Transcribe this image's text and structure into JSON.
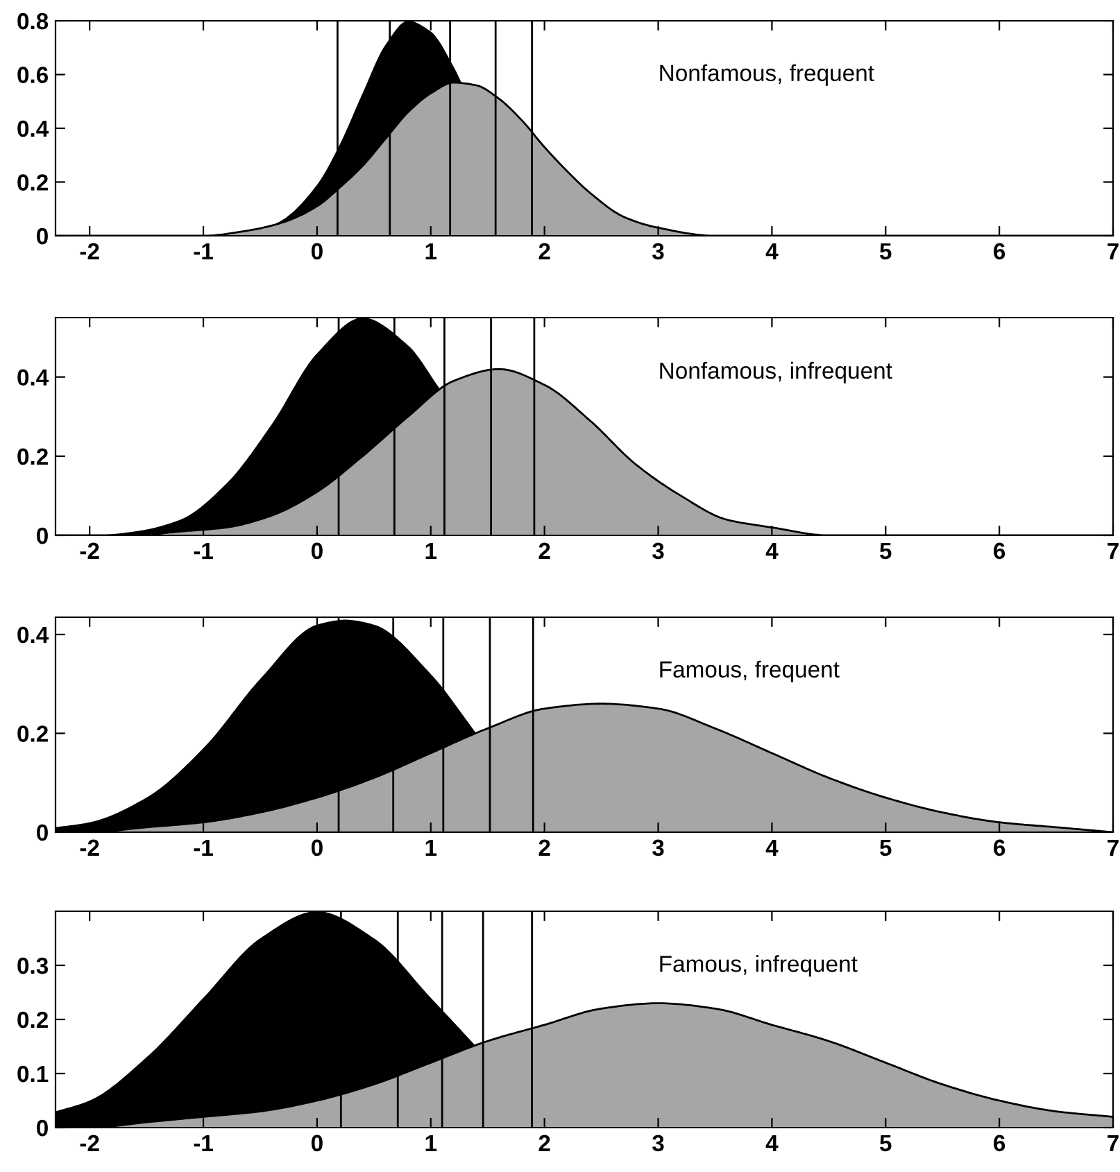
{
  "chart_data": [
    {
      "type": "area",
      "annotations": [
        "Nonfamous, frequent"
      ],
      "x": [
        -2.3,
        -1.5,
        -1,
        -0.6,
        -0.3,
        0,
        0.2,
        0.4,
        0.6,
        0.8,
        1.0,
        1.2,
        1.4,
        1.6,
        1.8,
        2.0,
        2.2,
        2.4,
        2.7,
        3.0,
        3.5,
        4,
        5,
        7
      ],
      "series": [
        {
          "color": "#000000",
          "x": [
            -0.5,
            -0.3,
            0,
            0.2,
            0.4,
            0.6,
            0.8,
            1.0,
            1.2,
            1.27
          ],
          "values": [
            0.02,
            0.06,
            0.19,
            0.34,
            0.53,
            0.71,
            0.8,
            0.76,
            0.63,
            0.57
          ]
        },
        {
          "color": "#a6a6a6",
          "values": [
            0,
            0,
            0,
            0.02,
            0.05,
            0.11,
            0.18,
            0.26,
            0.36,
            0.46,
            0.53,
            0.57,
            0.56,
            0.51,
            0.43,
            0.33,
            0.24,
            0.16,
            0.07,
            0.03,
            0,
            0,
            0,
            0
          ]
        }
      ],
      "xlim": [
        -2.3,
        7
      ],
      "xticks": [
        -2,
        -1,
        0,
        1,
        2,
        3,
        4,
        5,
        6,
        7
      ],
      "ylim": [
        0,
        0.8
      ],
      "yticks": [
        0,
        0.2,
        0.4,
        0.6,
        0.8
      ],
      "legend": false,
      "grid": false,
      "ref_lines": [
        {
          "axis": "x",
          "value": 0.18
        },
        {
          "axis": "x",
          "value": 0.64
        },
        {
          "axis": "x",
          "value": 1.17
        },
        {
          "axis": "x",
          "value": 1.57
        },
        {
          "axis": "x",
          "value": 1.89
        }
      ]
    },
    {
      "type": "area",
      "annotations": [
        "Nonfamous, infrequent"
      ],
      "x": [
        -2.3,
        -2,
        -1.6,
        -1.2,
        -0.8,
        -0.4,
        0,
        0.4,
        0.8,
        1.2,
        1.6,
        2.0,
        2.4,
        2.8,
        3.2,
        3.6,
        4.0,
        4.5,
        5,
        6,
        7
      ],
      "series": [
        {
          "color": "#000000",
          "x": [
            -2.3,
            -2,
            -1.6,
            -1.2,
            -0.8,
            -0.4,
            0,
            0.4,
            0.8,
            1.08
          ],
          "values": [
            0,
            0,
            0.01,
            0.04,
            0.13,
            0.28,
            0.46,
            0.55,
            0.48,
            0.37
          ]
        },
        {
          "color": "#a6a6a6",
          "values": [
            0,
            0,
            0,
            0.01,
            0.02,
            0.05,
            0.11,
            0.2,
            0.3,
            0.39,
            0.42,
            0.38,
            0.29,
            0.18,
            0.1,
            0.04,
            0.02,
            0,
            0,
            0,
            0
          ]
        }
      ],
      "xlim": [
        -2.3,
        7
      ],
      "xticks": [
        -2,
        -1,
        0,
        1,
        2,
        3,
        4,
        5,
        6,
        7
      ],
      "ylim": [
        0,
        0.55
      ],
      "yticks": [
        0,
        0.2,
        0.4
      ],
      "legend": false,
      "grid": false,
      "ref_lines": [
        {
          "axis": "x",
          "value": 0.19
        },
        {
          "axis": "x",
          "value": 0.68
        },
        {
          "axis": "x",
          "value": 1.12
        },
        {
          "axis": "x",
          "value": 1.53
        },
        {
          "axis": "x",
          "value": 1.91
        }
      ]
    },
    {
      "type": "area",
      "annotations": [
        "Famous, frequent"
      ],
      "x": [
        -2.3,
        -2,
        -1.5,
        -1,
        -0.5,
        0,
        0.5,
        1,
        1.5,
        2,
        2.5,
        3,
        3.5,
        4,
        4.5,
        5,
        5.5,
        6,
        6.5,
        7
      ],
      "series": [
        {
          "color": "#000000",
          "x": [
            -2.3,
            -2,
            -1.5,
            -1,
            -0.5,
            0,
            0.25,
            0.5,
            1,
            1.4
          ],
          "values": [
            0.01,
            0.02,
            0.07,
            0.17,
            0.31,
            0.42,
            0.43,
            0.42,
            0.32,
            0.2
          ]
        },
        {
          "color": "#a6a6a6",
          "values": [
            0,
            0,
            0.01,
            0.02,
            0.04,
            0.07,
            0.11,
            0.16,
            0.21,
            0.25,
            0.26,
            0.25,
            0.21,
            0.16,
            0.11,
            0.07,
            0.04,
            0.02,
            0.01,
            0
          ]
        }
      ],
      "xlim": [
        -2.3,
        7
      ],
      "xticks": [
        -2,
        -1,
        0,
        1,
        2,
        3,
        4,
        5,
        6,
        7
      ],
      "ylim": [
        0,
        0.435
      ],
      "yticks": [
        0,
        0.2,
        0.4
      ],
      "legend": false,
      "grid": false,
      "ref_lines": [
        {
          "axis": "x",
          "value": 0.19
        },
        {
          "axis": "x",
          "value": 0.67
        },
        {
          "axis": "x",
          "value": 1.11
        },
        {
          "axis": "x",
          "value": 1.52
        },
        {
          "axis": "x",
          "value": 1.9
        }
      ]
    },
    {
      "type": "area",
      "annotations": [
        "Famous, infrequent"
      ],
      "x": [
        -2.3,
        -2,
        -1.5,
        -1,
        -0.5,
        0,
        0.5,
        1,
        1.5,
        2,
        2.5,
        3,
        3.5,
        4,
        4.5,
        5,
        5.5,
        6,
        6.5,
        7
      ],
      "series": [
        {
          "color": "#000000",
          "x": [
            -2.3,
            -2,
            -1.5,
            -1,
            -0.5,
            0,
            0.5,
            1,
            1.4
          ],
          "values": [
            0.03,
            0.05,
            0.13,
            0.24,
            0.35,
            0.4,
            0.35,
            0.24,
            0.15
          ]
        },
        {
          "color": "#a6a6a6",
          "values": [
            0,
            0,
            0.01,
            0.02,
            0.03,
            0.05,
            0.08,
            0.12,
            0.16,
            0.19,
            0.22,
            0.23,
            0.22,
            0.19,
            0.16,
            0.12,
            0.08,
            0.05,
            0.03,
            0.02
          ]
        }
      ],
      "xlim": [
        -2.3,
        7
      ],
      "xticks": [
        -2,
        -1,
        0,
        1,
        2,
        3,
        4,
        5,
        6,
        7
      ],
      "ylim": [
        0,
        0.4
      ],
      "yticks": [
        0,
        0.1,
        0.2,
        0.3
      ],
      "legend": false,
      "grid": false,
      "ref_lines": [
        {
          "axis": "x",
          "value": 0.21
        },
        {
          "axis": "x",
          "value": 0.71
        },
        {
          "axis": "x",
          "value": 1.1
        },
        {
          "axis": "x",
          "value": 1.46
        },
        {
          "axis": "x",
          "value": 1.89
        }
      ]
    }
  ]
}
